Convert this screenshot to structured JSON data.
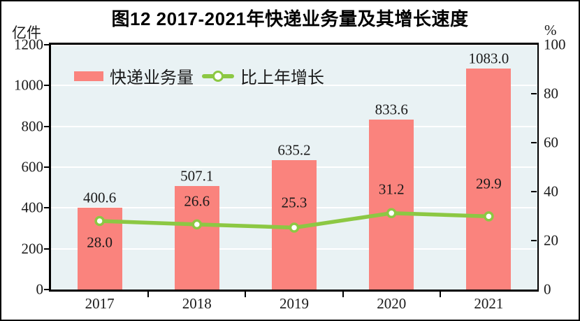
{
  "figure": {
    "title": "图12  2017-2021年快递业务量及其增长速度",
    "left_axis_unit": "亿件",
    "right_axis_unit": "%"
  },
  "legend": [
    {
      "label": "快递业务量",
      "symbol": "bar-swatch",
      "color": "#FA837D"
    },
    {
      "label": "比上年增长",
      "symbol": "line-with-marker",
      "color": "#8CC843"
    }
  ],
  "chart_data": {
    "type": "bar+line combo",
    "title": "图12  2017-2021年快递业务量及其增长速度",
    "categories": [
      "2017",
      "2018",
      "2019",
      "2020",
      "2021"
    ],
    "series": [
      {
        "name": "快递业务量",
        "type": "bar",
        "axis": "left",
        "unit": "亿件",
        "values": [
          400.6,
          507.1,
          635.2,
          833.6,
          1083.0
        ],
        "labels": [
          "400.6",
          "507.1",
          "635.2",
          "833.6",
          "1083.0"
        ],
        "color": "#FA837D"
      },
      {
        "name": "比上年增长",
        "type": "line",
        "axis": "right",
        "unit": "%",
        "values": [
          28.0,
          26.6,
          25.3,
          31.2,
          29.9
        ],
        "labels": [
          "28.0",
          "26.6",
          "25.3",
          "31.2",
          "29.9"
        ],
        "color": "#8CC843",
        "marker": "circle-white-fill"
      }
    ],
    "left_axis": {
      "unit": "亿件",
      "min": 0,
      "max": 1200,
      "step": 200,
      "ticks": [
        "0",
        "200",
        "400",
        "600",
        "800",
        "1000",
        "1200"
      ]
    },
    "right_axis": {
      "unit": "%",
      "min": 0,
      "max": 100,
      "step": 20,
      "ticks": [
        "0",
        "20",
        "40",
        "60",
        "80",
        "100"
      ]
    },
    "grid": true,
    "gridline_color": "#FFFFFF",
    "plot_background": "#E9F2F4",
    "legend_position": "inside-top-left"
  }
}
